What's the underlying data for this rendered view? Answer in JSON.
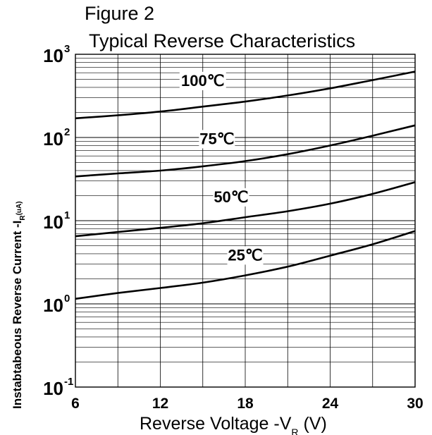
{
  "header": {
    "figure_label": "Figure 2",
    "title": "Typical Reverse Characteristics"
  },
  "chart_data": {
    "type": "line",
    "title": "Typical Reverse Characteristics",
    "xlabel_main": "Reverse  Voltage -V",
    "xlabel_sub": "R",
    "xlabel_unit": " (V)",
    "ylabel_main": "Instabtabeous Reverse Current -I",
    "ylabel_sub": "R",
    "ylabel_unit": "(uA)",
    "xlim": [
      6,
      30
    ],
    "ylim": [
      0.1,
      1000
    ],
    "yscale": "log",
    "grid": true,
    "x_ticks": [
      "6",
      "12",
      "18",
      "24",
      "30"
    ],
    "x_tick_values": [
      6,
      12,
      18,
      24,
      30
    ],
    "y_ticks": [
      {
        "base": "10",
        "exp": "-1",
        "value": 0.1
      },
      {
        "base": "10",
        "exp": "0",
        "value": 1
      },
      {
        "base": "10",
        "exp": "1",
        "value": 10
      },
      {
        "base": "10",
        "exp": "2",
        "value": 100
      },
      {
        "base": "10",
        "exp": "3",
        "value": 1000
      }
    ],
    "series": [
      {
        "name": "100℃",
        "x": [
          6,
          9,
          12,
          15,
          18,
          21,
          24,
          27,
          30
        ],
        "values": [
          170,
          185,
          205,
          235,
          270,
          320,
          390,
          490,
          620
        ],
        "label_at": [
          15,
          450
        ]
      },
      {
        "name": "75℃",
        "x": [
          6,
          9,
          12,
          15,
          18,
          21,
          24,
          27,
          30
        ],
        "values": [
          34,
          37,
          40,
          45,
          52,
          63,
          80,
          105,
          140
        ],
        "label_at": [
          16,
          90
        ]
      },
      {
        "name": "50℃",
        "x": [
          6,
          9,
          12,
          15,
          18,
          21,
          24,
          27,
          30
        ],
        "values": [
          6.5,
          7.3,
          8.2,
          9.3,
          11,
          13,
          16,
          21,
          29
        ],
        "label_at": [
          17,
          18
        ]
      },
      {
        "name": "25℃",
        "x": [
          6,
          9,
          12,
          15,
          18,
          21,
          24,
          27,
          30
        ],
        "values": [
          1.15,
          1.35,
          1.55,
          1.8,
          2.2,
          2.8,
          3.8,
          5.2,
          7.5
        ],
        "label_at": [
          18,
          3.6
        ]
      }
    ]
  }
}
